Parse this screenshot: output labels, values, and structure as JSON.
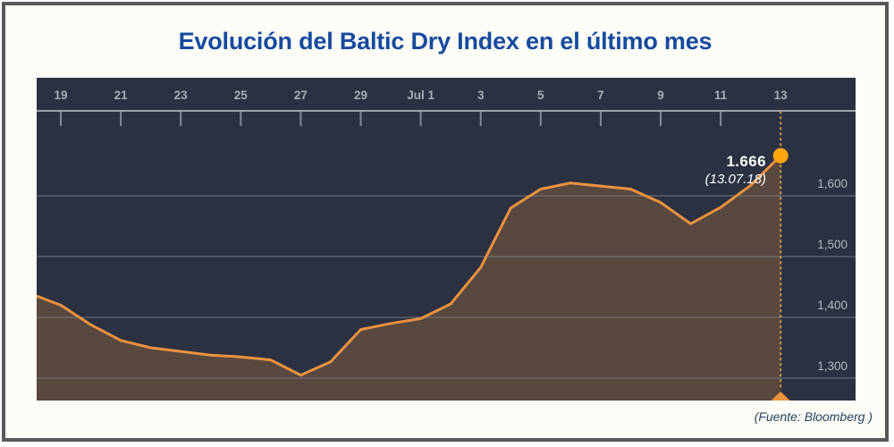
{
  "title": "Evolución del Baltic Dry Index en el último mes",
  "source": "(Fuente: Bloomberg )",
  "chart_data": {
    "type": "area",
    "title": "Evolución del Baltic Dry Index en el último mes",
    "series": [
      {
        "name": "Baltic Dry Index",
        "x": [
          "18 jun",
          "19 jun",
          "20 jun",
          "21 jun",
          "22 jun",
          "23 jun",
          "24 jun",
          "25 jun",
          "26 jun",
          "27 jun",
          "28 jun",
          "29 jun",
          "30 jun",
          "1 jul",
          "2 jul",
          "3 jul",
          "4 jul",
          "5 jul",
          "6 jul",
          "7 jul",
          "8 jul",
          "9 jul",
          "10 jul",
          "11 jul",
          "12 jul",
          "13 jul"
        ],
        "values": [
          1435,
          1420,
          1388,
          1362,
          1350,
          1344,
          1338,
          1335,
          1330,
          1305,
          1327,
          1380,
          1390,
          1398,
          1422,
          1482,
          1580,
          1611,
          1621,
          1616,
          1611,
          1589,
          1554,
          1581,
          1617,
          1666
        ]
      }
    ],
    "x_axis": {
      "position": "top",
      "tick_labels": [
        "19",
        "21",
        "23",
        "25",
        "27",
        "29",
        "Jul 1",
        "3",
        "5",
        "7",
        "9",
        "11",
        "13"
      ]
    },
    "y_axis": {
      "position": "right",
      "tick_labels": [
        "1,600",
        "1,500",
        "1,400",
        "1,300"
      ],
      "tick_values": [
        1600,
        1500,
        1400,
        1300
      ]
    },
    "ylim": [
      1263,
      1740
    ],
    "grid": true,
    "legend": "none",
    "annotation": {
      "value_label": "1.666",
      "date_label": "(13.07.18)",
      "value": 1666,
      "date": "13.07.18"
    },
    "colors": {
      "line": "#ea9240",
      "area": "#ea9240",
      "marker": "#ffa70c",
      "plot_background": "#2b3140",
      "grid": "#7b8290",
      "axis": "#9aa1ab",
      "tick_text": "#a7acb4",
      "y_label_text": "#b4b9c0",
      "title": "#164a9e",
      "annotation_text": "#ffffff",
      "source_text": "#27425f",
      "frame_border": "#59595b"
    }
  }
}
